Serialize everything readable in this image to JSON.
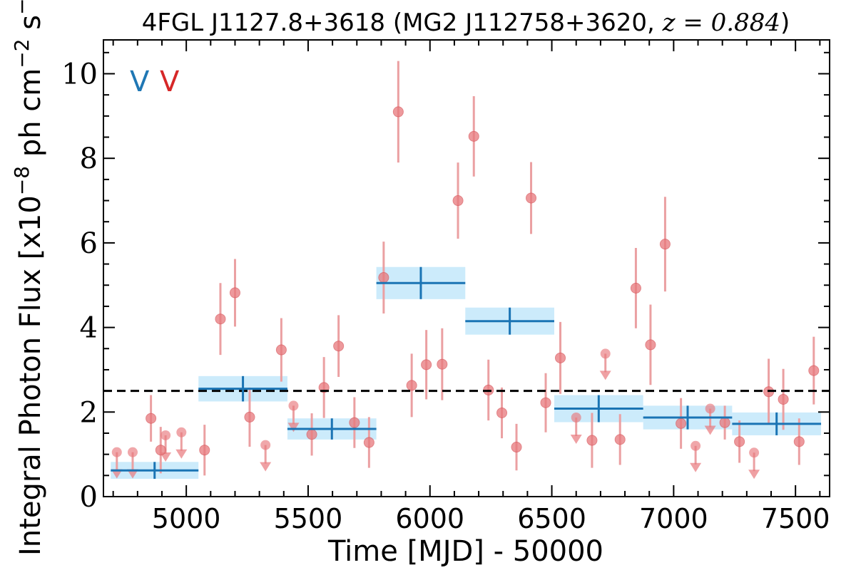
{
  "chart_data": {
    "type": "scatter",
    "title": "4FGL J1127.8+3618 (MG2 J112758+3620, ",
    "title_z": "z = 0.884",
    "title_end": ")",
    "xlabel": "Time [MJD] - 50000",
    "ylabel": "Integral Photon Flux [x10",
    "ylabel_exp1": "−8",
    "ylabel_mid": " ph cm",
    "ylabel_exp2": "−2",
    "ylabel_s": " s",
    "ylabel_exp3": "−1",
    "ylabel_end": "]",
    "xlim": [
      4660,
      7640
    ],
    "ylim": [
      0,
      10.8
    ],
    "xticks": [
      5000,
      5500,
      6000,
      6500,
      7000,
      7500
    ],
    "xtick_labels": [
      "5000",
      "5500",
      "6000",
      "6500",
      "7000",
      "7500"
    ],
    "yticks": [
      0,
      2,
      4,
      6,
      8,
      10
    ],
    "ytick_labels": [
      "0",
      "2",
      "4",
      "6",
      "8",
      "10"
    ],
    "minor_x_step": 100,
    "minor_y_step": 0.5,
    "grid": false,
    "reference_line": {
      "y": 2.5,
      "style": "dashed",
      "color": "#000000"
    },
    "markers": [
      {
        "text": "V",
        "color": "#1f77b4"
      },
      {
        "text": "V",
        "color": "#d62728"
      }
    ],
    "colors": {
      "fine_points": "#e8787c",
      "fine_errorbars": "#eba0a2",
      "coarse_bins": "#1a74b4",
      "coarse_band": "#ccebfb"
    },
    "series": [
      {
        "marker": "circle",
        "points": [
          {
            "x": 4855,
            "y": 1.85,
            "err": 0.55
          },
          {
            "x": 4895,
            "y": 1.1,
            "err": 0.55
          },
          {
            "x": 5075,
            "y": 1.1,
            "err": 0.6
          },
          {
            "x": 5140,
            "y": 4.2,
            "err": 0.85
          },
          {
            "x": 5200,
            "y": 4.82,
            "err": 0.8
          },
          {
            "x": 5260,
            "y": 1.88,
            "err": 0.7
          },
          {
            "x": 5390,
            "y": 3.47,
            "err": 0.75
          },
          {
            "x": 5515,
            "y": 1.47,
            "err": 0.5
          },
          {
            "x": 5565,
            "y": 2.58,
            "err": 0.72
          },
          {
            "x": 5625,
            "y": 3.56,
            "err": 0.73
          },
          {
            "x": 5690,
            "y": 1.75,
            "err": 0.6
          },
          {
            "x": 5750,
            "y": 1.28,
            "err": 0.6
          },
          {
            "x": 5810,
            "y": 5.18,
            "err": 0.85
          },
          {
            "x": 5870,
            "y": 9.1,
            "err": 1.2
          },
          {
            "x": 5925,
            "y": 2.63,
            "err": 0.75
          },
          {
            "x": 5985,
            "y": 3.12,
            "err": 0.82
          },
          {
            "x": 6050,
            "y": 3.13,
            "err": 0.85
          },
          {
            "x": 6115,
            "y": 7.0,
            "err": 0.9
          },
          {
            "x": 6180,
            "y": 8.52,
            "err": 0.95
          },
          {
            "x": 6240,
            "y": 2.52,
            "err": 0.72
          },
          {
            "x": 6295,
            "y": 1.98,
            "err": 0.6
          },
          {
            "x": 6355,
            "y": 1.17,
            "err": 0.55
          },
          {
            "x": 6415,
            "y": 7.06,
            "err": 0.85
          },
          {
            "x": 6475,
            "y": 2.22,
            "err": 0.7
          },
          {
            "x": 6535,
            "y": 3.28,
            "err": 0.85
          },
          {
            "x": 6665,
            "y": 1.33,
            "err": 0.65
          },
          {
            "x": 6780,
            "y": 1.35,
            "err": 0.6
          },
          {
            "x": 6845,
            "y": 4.93,
            "err": 0.95
          },
          {
            "x": 6905,
            "y": 3.59,
            "err": 0.95
          },
          {
            "x": 6965,
            "y": 5.97,
            "err": 1.12
          },
          {
            "x": 7030,
            "y": 1.73,
            "err": 0.6
          },
          {
            "x": 7210,
            "y": 1.75,
            "err": 0.4
          },
          {
            "x": 7270,
            "y": 1.3,
            "err": 0.5
          },
          {
            "x": 7390,
            "y": 2.48,
            "err": 0.78
          },
          {
            "x": 7450,
            "y": 2.3,
            "err": 0.72
          },
          {
            "x": 7515,
            "y": 1.3,
            "err": 0.55
          },
          {
            "x": 7575,
            "y": 2.98,
            "err": 0.8
          }
        ]
      },
      {
        "marker": "upper_limit",
        "points": [
          {
            "x": 4715,
            "y": 1.05
          },
          {
            "x": 4780,
            "y": 1.05
          },
          {
            "x": 4915,
            "y": 1.45
          },
          {
            "x": 4980,
            "y": 1.52
          },
          {
            "x": 5325,
            "y": 1.22
          },
          {
            "x": 5440,
            "y": 2.15
          },
          {
            "x": 6600,
            "y": 1.87
          },
          {
            "x": 6720,
            "y": 3.38
          },
          {
            "x": 7090,
            "y": 1.2
          },
          {
            "x": 7150,
            "y": 2.08
          },
          {
            "x": 7330,
            "y": 1.04
          }
        ]
      },
      {
        "marker": "bin",
        "points": [
          {
            "x0": 4690,
            "x1": 5050,
            "y": 0.62,
            "err": 0.2
          },
          {
            "x0": 5050,
            "x1": 5415,
            "y": 2.55,
            "err": 0.3
          },
          {
            "x0": 5415,
            "x1": 5780,
            "y": 1.6,
            "err": 0.25
          },
          {
            "x0": 5780,
            "x1": 6145,
            "y": 5.05,
            "err": 0.38
          },
          {
            "x0": 6145,
            "x1": 6510,
            "y": 4.15,
            "err": 0.32
          },
          {
            "x0": 6510,
            "x1": 6875,
            "y": 2.08,
            "err": 0.32
          },
          {
            "x0": 6875,
            "x1": 7240,
            "y": 1.87,
            "err": 0.28
          },
          {
            "x0": 7240,
            "x1": 7605,
            "y": 1.72,
            "err": 0.27
          }
        ]
      }
    ]
  }
}
